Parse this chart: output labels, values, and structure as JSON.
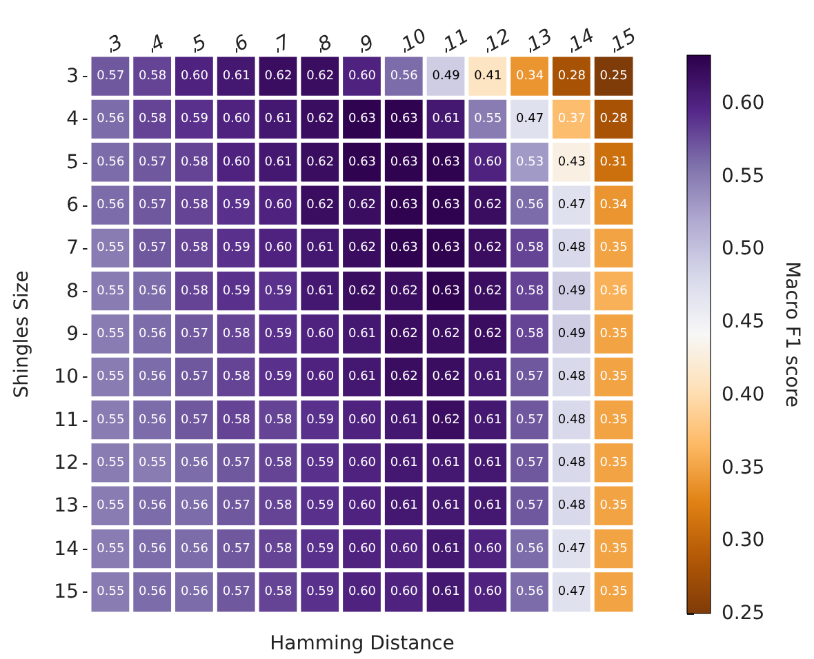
{
  "chart_data": {
    "type": "heatmap",
    "xlabel": "Hamming Distance",
    "ylabel": "Shingles Size",
    "clabel": "Macro F1 score",
    "categories": [
      "3",
      "4",
      "5",
      "6",
      "7",
      "8",
      "9",
      "10",
      "11",
      "12",
      "13",
      "14",
      "15"
    ],
    "y_categories": [
      "3",
      "4",
      "5",
      "6",
      "7",
      "8",
      "9",
      "10",
      "11",
      "12",
      "13",
      "14",
      "15"
    ],
    "cells": [
      [
        0.57,
        0.58,
        0.6,
        0.61,
        0.62,
        0.62,
        0.6,
        0.56,
        0.49,
        0.41,
        0.34,
        0.28,
        0.25
      ],
      [
        0.56,
        0.58,
        0.59,
        0.6,
        0.61,
        0.62,
        0.63,
        0.63,
        0.61,
        0.55,
        0.47,
        0.37,
        0.28
      ],
      [
        0.56,
        0.57,
        0.58,
        0.6,
        0.61,
        0.62,
        0.63,
        0.63,
        0.63,
        0.6,
        0.53,
        0.43,
        0.31
      ],
      [
        0.56,
        0.57,
        0.58,
        0.59,
        0.6,
        0.62,
        0.62,
        0.63,
        0.63,
        0.62,
        0.56,
        0.47,
        0.34
      ],
      [
        0.55,
        0.57,
        0.58,
        0.59,
        0.6,
        0.61,
        0.62,
        0.63,
        0.63,
        0.62,
        0.58,
        0.48,
        0.35
      ],
      [
        0.55,
        0.56,
        0.58,
        0.59,
        0.59,
        0.61,
        0.62,
        0.62,
        0.63,
        0.62,
        0.58,
        0.49,
        0.36
      ],
      [
        0.55,
        0.56,
        0.57,
        0.58,
        0.59,
        0.6,
        0.61,
        0.62,
        0.62,
        0.62,
        0.58,
        0.49,
        0.35
      ],
      [
        0.55,
        0.56,
        0.57,
        0.58,
        0.59,
        0.6,
        0.61,
        0.62,
        0.62,
        0.61,
        0.57,
        0.48,
        0.35
      ],
      [
        0.55,
        0.56,
        0.57,
        0.58,
        0.58,
        0.59,
        0.6,
        0.61,
        0.62,
        0.61,
        0.57,
        0.48,
        0.35
      ],
      [
        0.55,
        0.55,
        0.56,
        0.57,
        0.58,
        0.59,
        0.6,
        0.61,
        0.61,
        0.61,
        0.57,
        0.48,
        0.35
      ],
      [
        0.55,
        0.56,
        0.56,
        0.57,
        0.58,
        0.59,
        0.6,
        0.61,
        0.61,
        0.61,
        0.57,
        0.48,
        0.35
      ],
      [
        0.55,
        0.56,
        0.56,
        0.57,
        0.58,
        0.59,
        0.6,
        0.6,
        0.61,
        0.6,
        0.56,
        0.47,
        0.35
      ],
      [
        0.55,
        0.56,
        0.56,
        0.57,
        0.58,
        0.59,
        0.6,
        0.6,
        0.61,
        0.6,
        0.56,
        0.47,
        0.35
      ]
    ],
    "cell_labels": [
      [
        "0.57",
        "0.58",
        "0.60",
        "0.61",
        "0.62",
        "0.62",
        "0.60",
        "0.56",
        "0.49",
        "0.41",
        "0.34",
        "0.28",
        "0.25"
      ],
      [
        "0.56",
        "0.58",
        "0.59",
        "0.60",
        "0.61",
        "0.62",
        "0.63",
        "0.63",
        "0.61",
        "0.55",
        "0.47",
        "0.37",
        "0.28"
      ],
      [
        "0.56",
        "0.57",
        "0.58",
        "0.60",
        "0.61",
        "0.62",
        "0.63",
        "0.63",
        "0.63",
        "0.60",
        "0.53",
        "0.43",
        "0.31"
      ],
      [
        "0.56",
        "0.57",
        "0.58",
        "0.59",
        "0.60",
        "0.62",
        "0.62",
        "0.63",
        "0.63",
        "0.62",
        "0.56",
        "0.47",
        "0.34"
      ],
      [
        "0.55",
        "0.57",
        "0.58",
        "0.59",
        "0.60",
        "0.61",
        "0.62",
        "0.63",
        "0.63",
        "0.62",
        "0.58",
        "0.48",
        "0.35"
      ],
      [
        "0.55",
        "0.56",
        "0.58",
        "0.59",
        "0.59",
        "0.61",
        "0.62",
        "0.62",
        "0.63",
        "0.62",
        "0.58",
        "0.49",
        "0.36"
      ],
      [
        "0.55",
        "0.56",
        "0.57",
        "0.58",
        "0.59",
        "0.60",
        "0.61",
        "0.62",
        "0.62",
        "0.62",
        "0.58",
        "0.49",
        "0.35"
      ],
      [
        "0.55",
        "0.56",
        "0.57",
        "0.58",
        "0.59",
        "0.60",
        "0.61",
        "0.62",
        "0.62",
        "0.61",
        "0.57",
        "0.48",
        "0.35"
      ],
      [
        "0.55",
        "0.56",
        "0.57",
        "0.58",
        "0.58",
        "0.59",
        "0.60",
        "0.61",
        "0.62",
        "0.61",
        "0.57",
        "0.48",
        "0.35"
      ],
      [
        "0.55",
        "0.55",
        "0.56",
        "0.57",
        "0.58",
        "0.59",
        "0.60",
        "0.61",
        "0.61",
        "0.61",
        "0.57",
        "0.48",
        "0.35"
      ],
      [
        "0.55",
        "0.56",
        "0.56",
        "0.57",
        "0.58",
        "0.59",
        "0.60",
        "0.61",
        "0.61",
        "0.61",
        "0.57",
        "0.48",
        "0.35"
      ],
      [
        "0.55",
        "0.56",
        "0.56",
        "0.57",
        "0.58",
        "0.59",
        "0.60",
        "0.60",
        "0.61",
        "0.60",
        "0.56",
        "0.47",
        "0.35"
      ],
      [
        "0.55",
        "0.56",
        "0.56",
        "0.57",
        "0.58",
        "0.59",
        "0.60",
        "0.60",
        "0.61",
        "0.60",
        "0.56",
        "0.47",
        "0.35"
      ]
    ],
    "clim": [
      0.25,
      0.633
    ],
    "cticks": [
      0.25,
      {
        "value": 0.3,
        "label": "0.30"
      },
      0.35,
      {
        "value": 0.4,
        "label": "0.40"
      },
      0.45,
      {
        "value": 0.5,
        "label": "0.50"
      },
      0.55,
      {
        "value": 0.6,
        "label": "0.60"
      }
    ]
  }
}
